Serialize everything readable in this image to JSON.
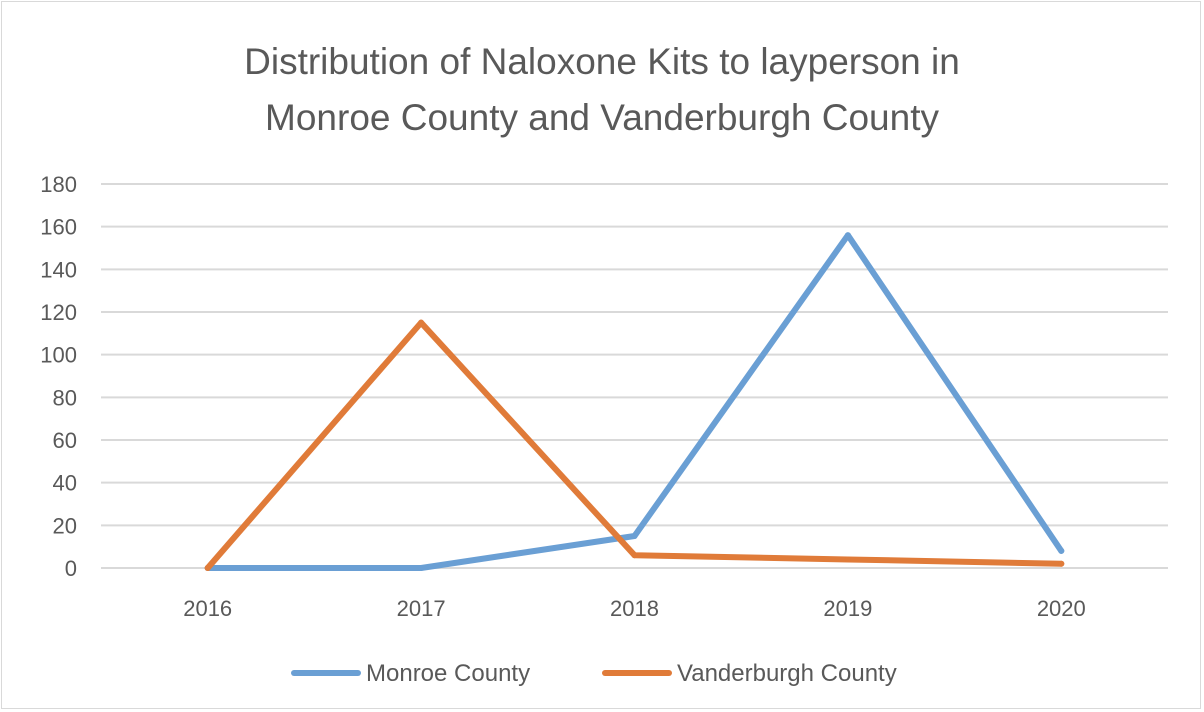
{
  "chart_data": {
    "type": "line",
    "title_lines": [
      "Distribution of Naloxone Kits to layperson in",
      "Monroe County and Vanderburgh County"
    ],
    "xlabel": "",
    "ylabel": "",
    "categories": [
      "2016",
      "2017",
      "2018",
      "2019",
      "2020"
    ],
    "ylim": [
      0,
      180
    ],
    "yticks": [
      0,
      20,
      40,
      60,
      80,
      100,
      120,
      140,
      160,
      180
    ],
    "grid": true,
    "legend_position": "bottom",
    "series": [
      {
        "name": "Monroe County",
        "color": "#6a9fd4",
        "values": [
          0,
          0,
          15,
          156,
          8
        ]
      },
      {
        "name": "Vanderburgh County",
        "color": "#e07b39",
        "values": [
          0,
          115,
          6,
          4,
          2
        ]
      }
    ]
  }
}
